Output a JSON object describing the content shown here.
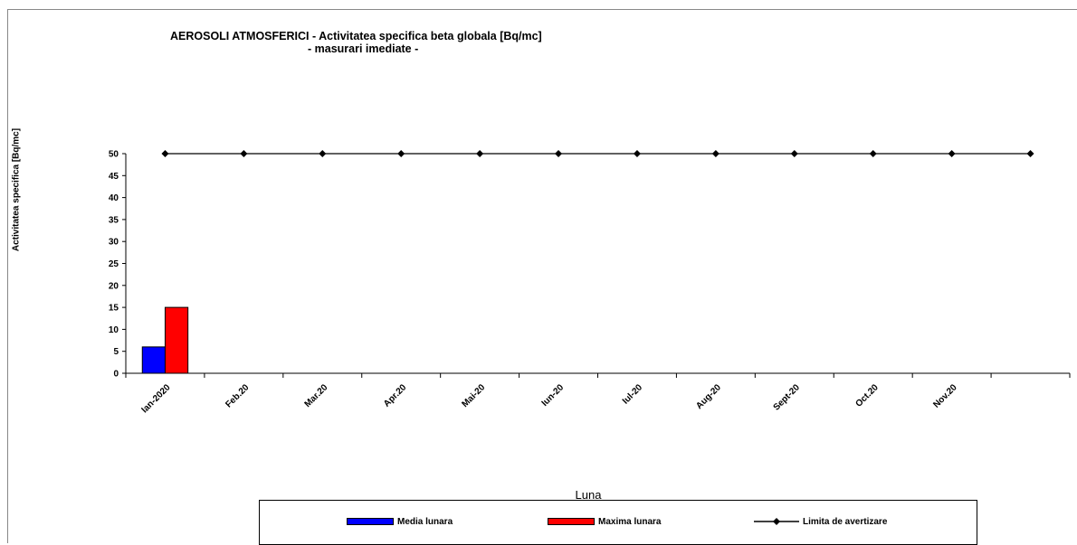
{
  "chart_data": {
    "type": "bar",
    "title": "AEROSOLI  ATMOSFERICI - Activitatea  specifica  beta globala [Bq/mc]",
    "subtitle": "- masurari imediate -",
    "xlabel": "Luna",
    "ylabel": "Activitatea specifica [Bq/mc]",
    "ylim": [
      0,
      50
    ],
    "yticks": [
      0,
      5,
      10,
      15,
      20,
      25,
      30,
      35,
      40,
      45,
      50
    ],
    "categories": [
      "Ian-2020",
      "Feb.20",
      "Mar.20",
      "Apr.20",
      "Mai-20",
      "Iun-20",
      "Iul-20",
      "Aug-20",
      "Sept-20",
      "Oct.20",
      "Nov.20",
      ""
    ],
    "series": [
      {
        "name": "Media lunara",
        "kind": "bar",
        "color": "#0000ff",
        "values": [
          6,
          null,
          null,
          null,
          null,
          null,
          null,
          null,
          null,
          null,
          null,
          null
        ]
      },
      {
        "name": "Maxima lunara",
        "kind": "bar",
        "color": "#ff0000",
        "values": [
          15,
          null,
          null,
          null,
          null,
          null,
          null,
          null,
          null,
          null,
          null,
          null
        ]
      },
      {
        "name": "Limita de avertizare",
        "kind": "line",
        "color": "#000000",
        "values": [
          50,
          50,
          50,
          50,
          50,
          50,
          50,
          50,
          50,
          50,
          50,
          50
        ]
      }
    ],
    "legend": "bottom",
    "grid": false
  }
}
